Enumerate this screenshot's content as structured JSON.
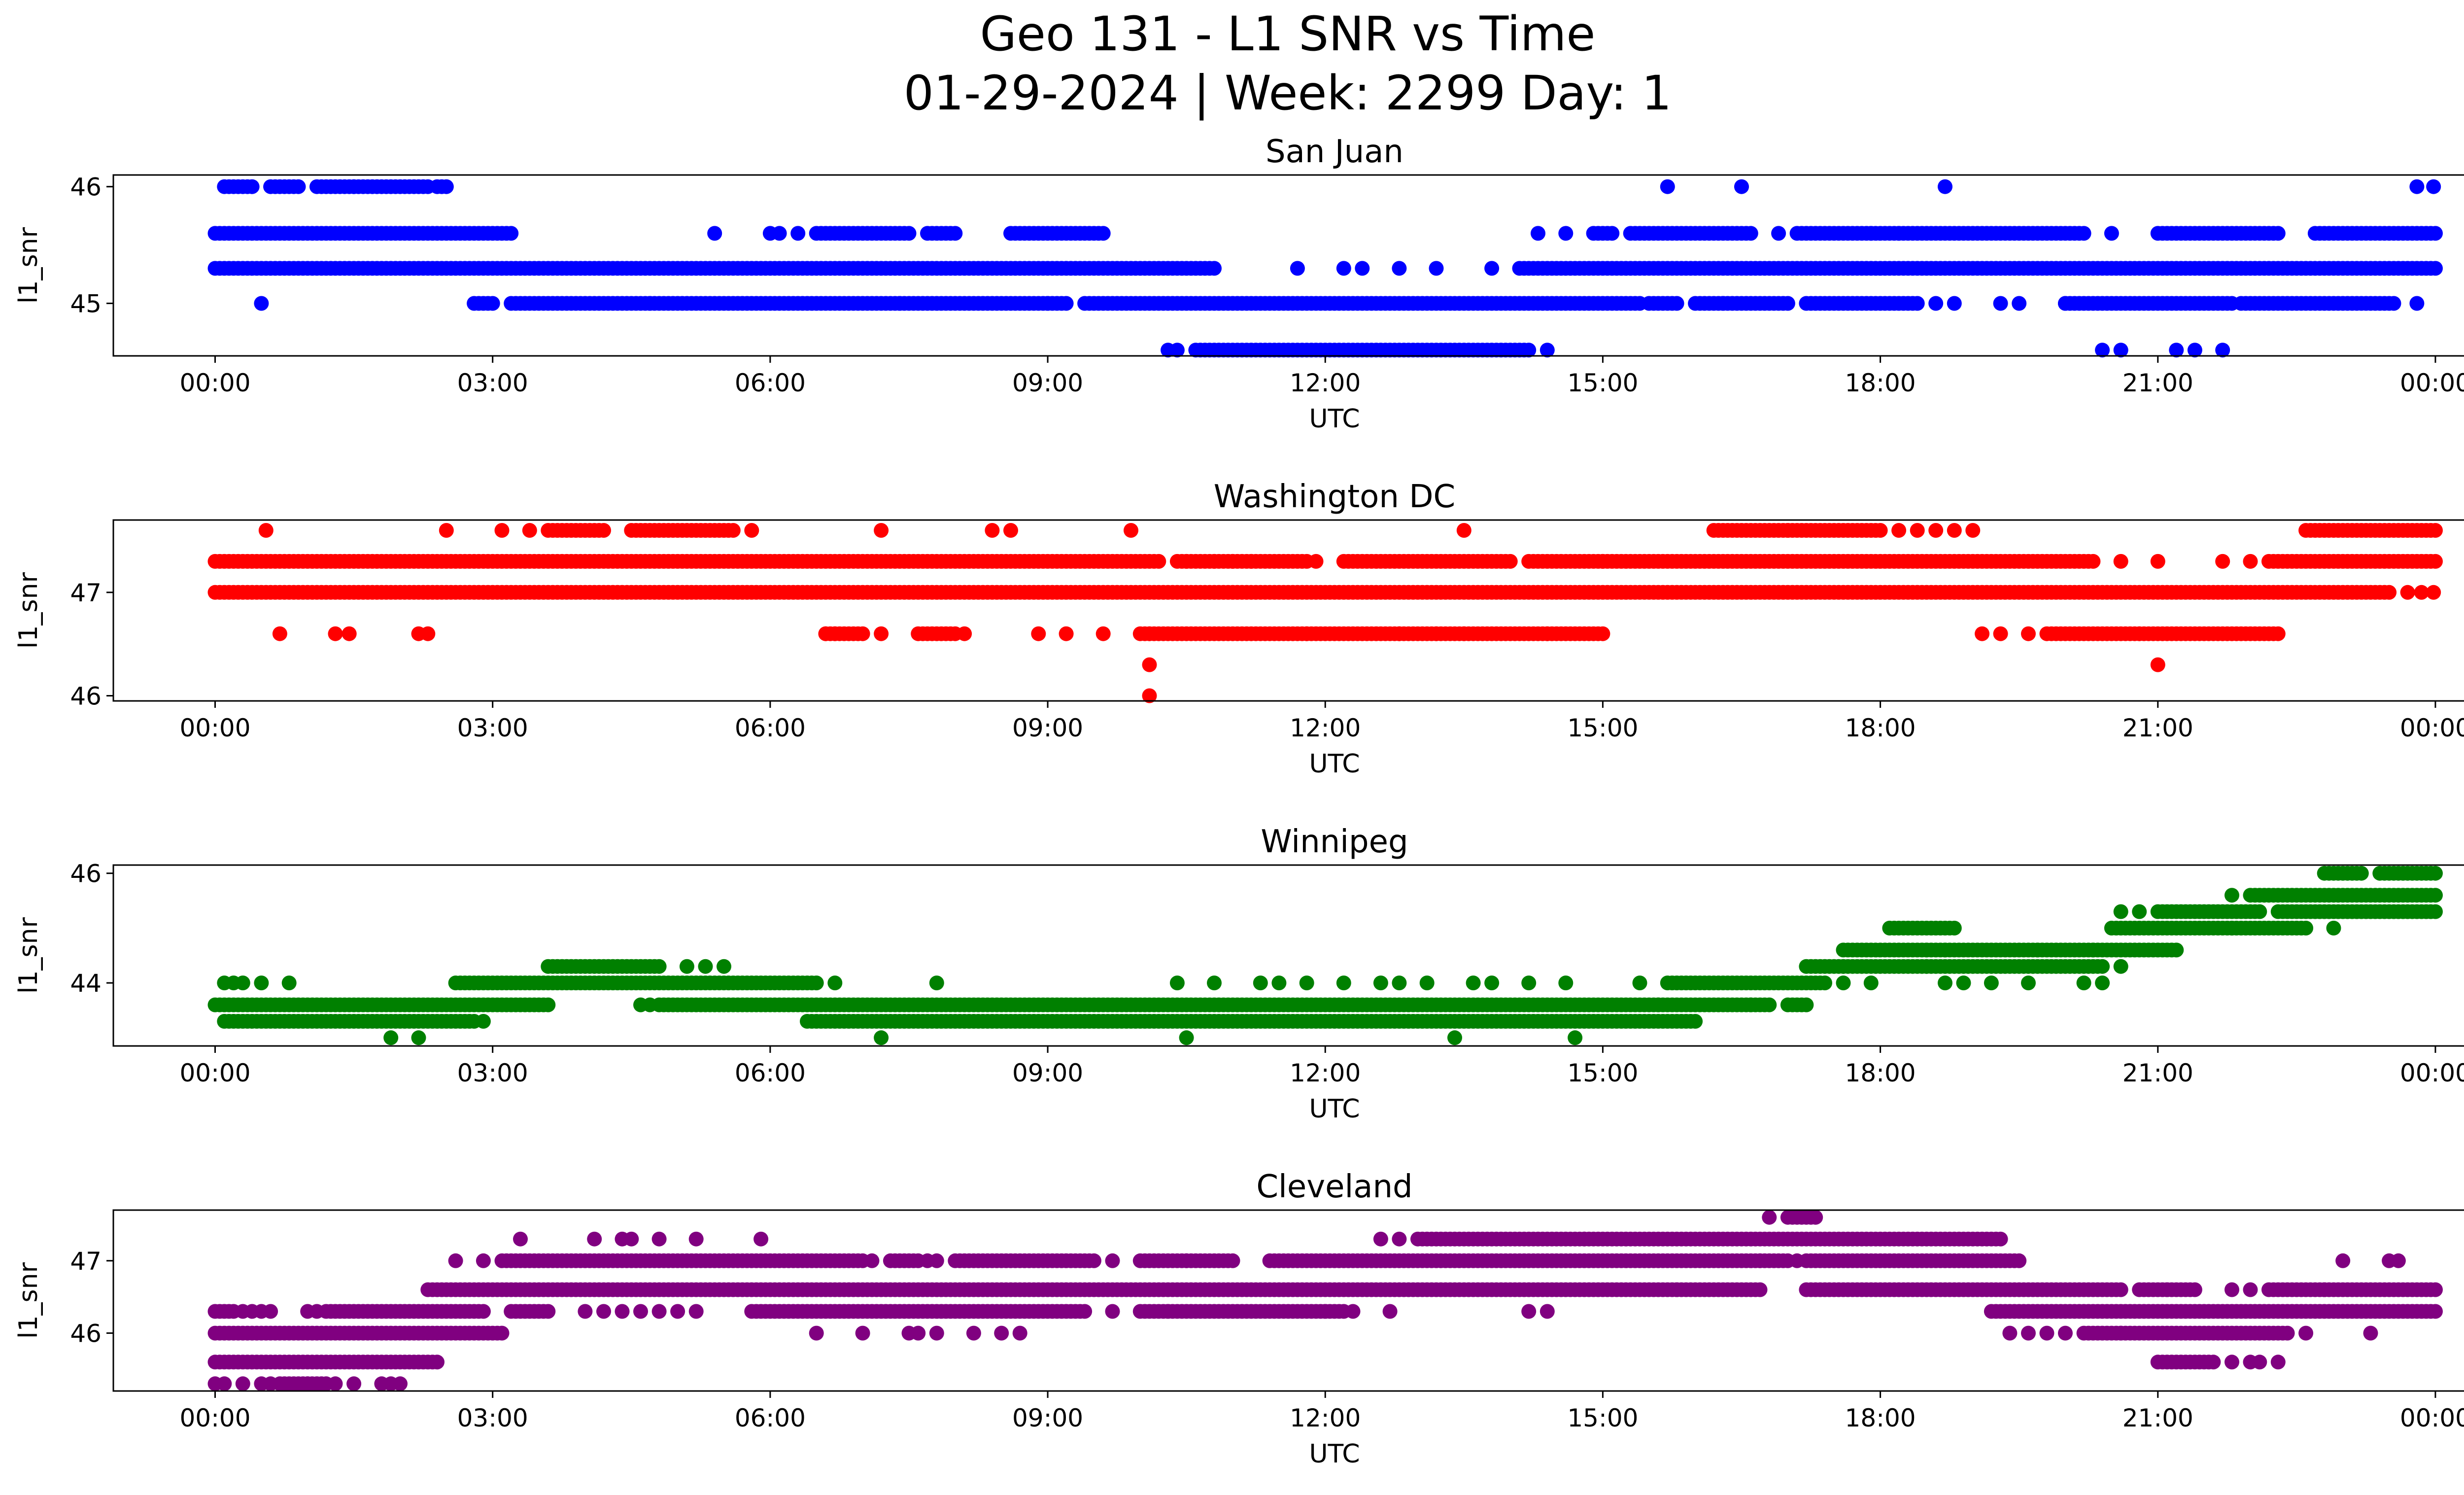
{
  "figure_title": {
    "line1": "Geo 131 - L1 SNR vs Time",
    "line2": "01-29-2024 | Week: 2299 Day: 1"
  },
  "chart_data": [
    {
      "type": "scatter",
      "title": "San Juan",
      "xlabel": "UTC",
      "ylabel": "l1_snr",
      "color": "#0000ff",
      "x_ticks": [
        "00:00",
        "03:00",
        "06:00",
        "09:00",
        "12:00",
        "15:00",
        "18:00",
        "21:00",
        "00:00"
      ],
      "y_ticks": [
        45,
        46
      ],
      "xlim_hours": [
        -1.1,
        25.3
      ],
      "ylim": [
        44.55,
        46.1
      ],
      "x_range_hours": [
        0,
        24
      ],
      "levels": [
        {
          "y": 46.0,
          "bands": [
            [
              0.1,
              0.4
            ],
            [
              0.6,
              0.9
            ],
            [
              1.1,
              1.5
            ],
            [
              1.5,
              2.3
            ],
            [
              2.4,
              2.5
            ]
          ],
          "points": [
            15.7,
            16.5,
            18.7,
            23.8,
            23.98
          ]
        },
        {
          "y": 45.6,
          "bands": [
            [
              0.0,
              3.2
            ],
            [
              6.5,
              7.5
            ],
            [
              7.7,
              8.0
            ],
            [
              8.6,
              9.6
            ],
            [
              14.9,
              15.1
            ],
            [
              15.3,
              16.6
            ],
            [
              17.1,
              17.9
            ],
            [
              17.9,
              20.2
            ],
            [
              21.0,
              22.3
            ],
            [
              22.7,
              24.0
            ]
          ],
          "points": [
            5.4,
            6.0,
            6.1,
            6.3,
            14.3,
            14.6,
            16.9,
            18.2,
            20.5
          ]
        },
        {
          "y": 45.3,
          "bands": [
            [
              0.0,
              10.8
            ],
            [
              14.1,
              24.0
            ]
          ],
          "points": [
            11.7,
            12.2,
            12.4,
            12.8,
            13.2,
            13.8
          ]
        },
        {
          "y": 45.0,
          "bands": [
            [
              2.8,
              3.0
            ],
            [
              3.2,
              4.7
            ],
            [
              4.7,
              7.4
            ],
            [
              7.4,
              9.0
            ],
            [
              9.0,
              9.2
            ],
            [
              9.4,
              15.4
            ],
            [
              15.5,
              15.8
            ],
            [
              16.0,
              17.0
            ],
            [
              17.2,
              18.4
            ],
            [
              20.0,
              21.8
            ],
            [
              21.9,
              23.3
            ],
            [
              23.35,
              23.55
            ]
          ],
          "points": [
            0.5,
            16.3,
            18.6,
            18.8,
            19.3,
            19.5,
            20.0,
            23.8
          ]
        },
        {
          "y": 44.6,
          "bands": [
            [
              10.6,
              14.2
            ]
          ],
          "points": [
            10.3,
            10.4,
            14.4,
            20.4,
            20.6,
            21.2,
            21.4,
            21.7
          ]
        }
      ]
    },
    {
      "type": "scatter",
      "title": "Washington DC",
      "xlabel": "UTC",
      "ylabel": "l1_snr",
      "color": "#ff0000",
      "x_ticks": [
        "00:00",
        "03:00",
        "06:00",
        "09:00",
        "12:00",
        "15:00",
        "18:00",
        "21:00",
        "00:00"
      ],
      "y_ticks": [
        46,
        47
      ],
      "xlim_hours": [
        -1.1,
        25.3
      ],
      "ylim": [
        45.95,
        47.7
      ],
      "x_range_hours": [
        0,
        24
      ],
      "levels": [
        {
          "y": 47.6,
          "bands": [
            [
              3.6,
              4.2
            ],
            [
              4.5,
              5.6
            ],
            [
              16.2,
              17.0
            ],
            [
              17.0,
              18.0
            ],
            [
              22.6,
              24.0
            ]
          ],
          "points": [
            0.55,
            2.5,
            3.1,
            3.4,
            5.8,
            7.2,
            8.4,
            8.6,
            9.9,
            13.5,
            18.2,
            18.4,
            18.6,
            18.8,
            19.0
          ]
        },
        {
          "y": 47.3,
          "bands": [
            [
              0.0,
              10.2
            ],
            [
              10.4,
              11.8
            ],
            [
              12.2,
              14.0
            ],
            [
              14.2,
              15.0
            ],
            [
              15.0,
              20.3
            ],
            [
              22.2,
              24.0
            ]
          ],
          "points": [
            10.5,
            10.8,
            11.0,
            11.2,
            11.9,
            20.6,
            21.0,
            21.7,
            22.0
          ]
        },
        {
          "y": 47.0,
          "bands": [
            [
              0.0,
              23.5
            ]
          ],
          "points": [
            23.7,
            23.85,
            23.98
          ]
        },
        {
          "y": 46.6,
          "bands": [
            [
              6.6,
              7.0
            ],
            [
              7.6,
              8.0
            ],
            [
              10.0,
              11.8
            ],
            [
              11.8,
              12.8
            ],
            [
              12.8,
              14.4
            ],
            [
              14.4,
              15.0
            ],
            [
              19.8,
              20.8
            ],
            [
              20.8,
              22.3
            ]
          ],
          "points": [
            0.7,
            1.3,
            1.45,
            2.2,
            2.3,
            6.6,
            6.7,
            7.2,
            8.1,
            8.9,
            9.2,
            9.6,
            10.1,
            12.8,
            13.2,
            13.5,
            19.1,
            19.3,
            19.6
          ]
        },
        {
          "y": 46.3,
          "bands": [],
          "points": [
            10.1,
            21.0
          ]
        },
        {
          "y": 46.0,
          "bands": [],
          "points": [
            10.1
          ]
        }
      ]
    },
    {
      "type": "scatter",
      "title": "Winnipeg",
      "xlabel": "UTC",
      "ylabel": "l1_snr",
      "color": "#008000",
      "x_ticks": [
        "00:00",
        "03:00",
        "06:00",
        "09:00",
        "12:00",
        "15:00",
        "18:00",
        "21:00",
        "00:00"
      ],
      "y_ticks": [
        44,
        46
      ],
      "xlim_hours": [
        -1.1,
        25.3
      ],
      "ylim": [
        42.85,
        46.15
      ],
      "x_range_hours": [
        0,
        24
      ],
      "levels": [
        {
          "y": 46.0,
          "bands": [
            [
              22.8,
              23.2
            ],
            [
              23.4,
              24.0
            ]
          ],
          "points": []
        },
        {
          "y": 45.6,
          "bands": [
            [
              22.0,
              24.0
            ]
          ],
          "points": [
            21.8
          ]
        },
        {
          "y": 45.3,
          "bands": [
            [
              21.0,
              22.1
            ],
            [
              22.3,
              24.0
            ]
          ],
          "points": [
            20.6,
            20.8
          ]
        },
        {
          "y": 45.0,
          "bands": [
            [
              20.5,
              21.8
            ],
            [
              21.8,
              22.6
            ]
          ],
          "points": [
            22.9
          ]
        },
        {
          "y": 44.6,
          "bands": [
            [
              17.6,
              19.7
            ],
            [
              19.7,
              20.3
            ],
            [
              20.3,
              21.2
            ]
          ],
          "points": [
            18.5,
            18.7
          ]
        },
        {
          "y": 44.3,
          "bands": [
            [
              3.6,
              4.8
            ],
            [
              17.2,
              17.6
            ],
            [
              17.6,
              18.5
            ],
            [
              18.5,
              20.4
            ]
          ],
          "points": [
            5.1,
            5.3,
            5.5,
            20.6
          ]
        },
        {
          "y": 45.0,
          "bands": [
            [
              18.1,
              18.8
            ]
          ],
          "points": []
        },
        {
          "y": 44.0,
          "bands": [
            [
              2.6,
              6.5
            ],
            [
              15.7,
              17.4
            ]
          ],
          "points": [
            0.1,
            0.2,
            0.3,
            0.5,
            0.8,
            6.7,
            7.8,
            10.4,
            10.8,
            11.3,
            11.5,
            11.8,
            12.2,
            12.6,
            12.8,
            13.1,
            13.6,
            13.8,
            14.2,
            14.6,
            15.4,
            17.6,
            17.9,
            18.7,
            18.9,
            19.2,
            19.6,
            20.2,
            20.4
          ]
        },
        {
          "y": 43.6,
          "bands": [
            [
              0.0,
              3.6
            ],
            [
              4.8,
              15.6
            ],
            [
              15.6,
              16.6
            ],
            [
              16.6,
              16.8
            ],
            [
              17.0,
              17.2
            ]
          ],
          "points": [
            4.6,
            4.7
          ]
        },
        {
          "y": 43.3,
          "bands": [
            [
              0.1,
              2.8
            ],
            [
              6.4,
              16.0
            ]
          ],
          "points": [
            2.9
          ]
        },
        {
          "y": 43.0,
          "bands": [],
          "points": [
            1.9,
            2.2,
            7.2,
            10.5,
            13.4,
            14.7
          ]
        }
      ]
    },
    {
      "type": "scatter",
      "title": "Cleveland",
      "xlabel": "UTC",
      "ylabel": "l1_snr",
      "color": "#800080",
      "x_ticks": [
        "00:00",
        "03:00",
        "06:00",
        "09:00",
        "12:00",
        "15:00",
        "18:00",
        "21:00",
        "00:00"
      ],
      "y_ticks": [
        46,
        47
      ],
      "xlim_hours": [
        -1.1,
        25.3
      ],
      "ylim": [
        45.2,
        47.7
      ],
      "x_range_hours": [
        0,
        24
      ],
      "levels": [
        {
          "y": 47.6,
          "bands": [
            [
              17.0,
              17.3
            ]
          ],
          "points": [
            16.8
          ]
        },
        {
          "y": 47.3,
          "bands": [
            [
              13.0,
              14.8
            ],
            [
              14.8,
              19.3
            ]
          ],
          "points": [
            3.3,
            4.1,
            4.4,
            4.5,
            4.8,
            5.2,
            5.9,
            12.6,
            12.8
          ]
        },
        {
          "y": 47.0,
          "bands": [
            [
              3.1,
              7.0
            ],
            [
              7.3,
              7.6
            ],
            [
              8.0,
              9.5
            ],
            [
              10.0,
              11.0
            ],
            [
              11.4,
              17.0
            ],
            [
              17.2,
              19.5
            ]
          ],
          "points": [
            2.6,
            2.9,
            7.1,
            7.7,
            7.8,
            9.7,
            10.5,
            16.7,
            17.1,
            23.0,
            23.5,
            23.6
          ]
        },
        {
          "y": 46.6,
          "bands": [
            [
              2.3,
              15.8
            ],
            [
              15.8,
              16.7
            ],
            [
              17.2,
              20.6
            ],
            [
              20.8,
              21.4
            ],
            [
              22.2,
              24.0
            ]
          ],
          "points": [
            21.1,
            21.8,
            22.0,
            22.8
          ]
        },
        {
          "y": 46.3,
          "bands": [
            [
              0.0,
              0.2
            ],
            [
              1.2,
              2.9
            ],
            [
              3.2,
              3.6
            ],
            [
              5.8,
              9.4
            ],
            [
              10.0,
              12.2
            ],
            [
              19.2,
              24.0
            ]
          ],
          "points": [
            0.3,
            0.4,
            0.5,
            0.6,
            1.0,
            1.1,
            4.0,
            4.2,
            4.4,
            4.6,
            4.8,
            5.0,
            5.2,
            9.7,
            10.3,
            12.0,
            12.3,
            12.7,
            14.2,
            14.4
          ]
        },
        {
          "y": 46.0,
          "bands": [
            [
              0.0,
              3.1
            ],
            [
              20.2,
              20.6
            ],
            [
              20.6,
              22.4
            ]
          ],
          "points": [
            6.5,
            7.0,
            7.5,
            7.6,
            7.8,
            8.2,
            8.5,
            8.7,
            19.4,
            19.6,
            19.8,
            20.0,
            22.6,
            23.3
          ]
        },
        {
          "y": 45.6,
          "bands": [
            [
              0.0,
              2.4
            ],
            [
              21.0,
              21.6
            ]
          ],
          "points": [
            21.8,
            22.0,
            22.1,
            22.3
          ]
        },
        {
          "y": 45.3,
          "bands": [
            [
              0.7,
              1.0
            ],
            [
              1.0,
              1.2
            ]
          ],
          "points": [
            0.0,
            0.1,
            0.3,
            0.5,
            0.6,
            1.3,
            1.5,
            1.8,
            1.9,
            2.0
          ]
        }
      ]
    }
  ]
}
